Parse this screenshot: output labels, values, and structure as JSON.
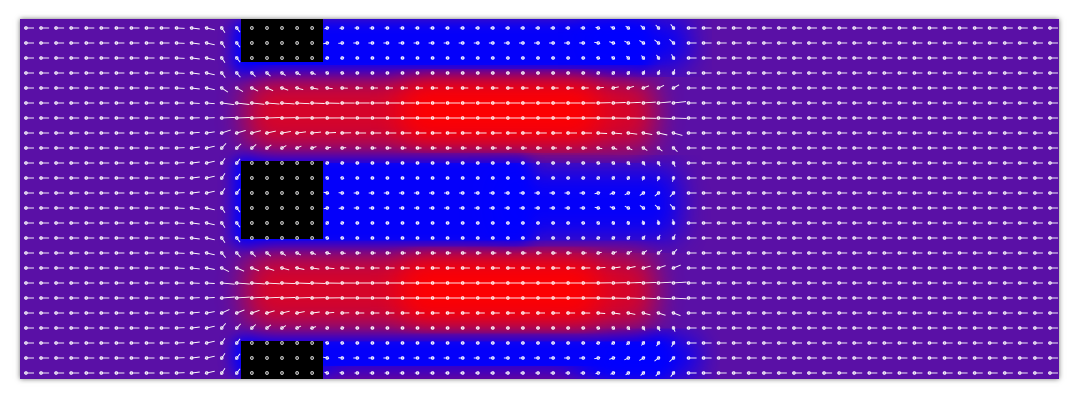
{
  "visualization": {
    "kind": "2d-flow-field-with-velocity-vectors",
    "colormap": {
      "low": "#0000ff",
      "mid": "#5a10a6",
      "high": "#ff0000"
    },
    "obstacle_color": "#000000",
    "arrow_color": "#ffffff",
    "obstacles": [
      {
        "name": "top-obstacle"
      },
      {
        "name": "middle-obstacle"
      },
      {
        "name": "bottom-obstacle"
      }
    ],
    "vector_grid": {
      "columns": 69,
      "rows": 24
    }
  }
}
